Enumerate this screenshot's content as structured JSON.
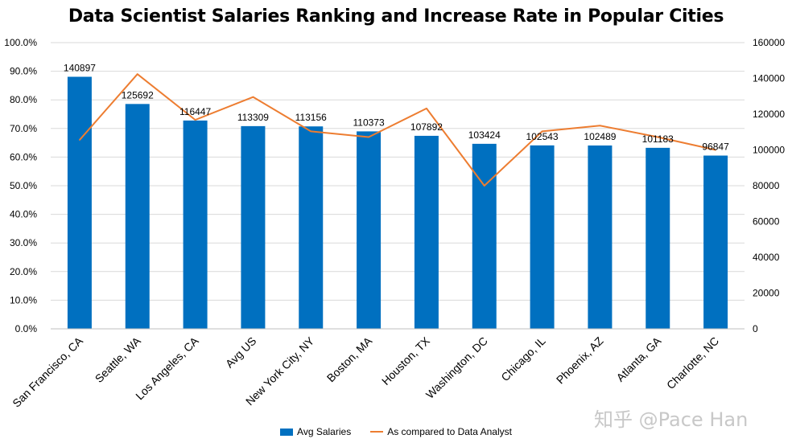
{
  "title": "Data Scientist Salaries Ranking and Increase Rate in Popular Cities",
  "watermark": "知乎 @Pace Han",
  "colors": {
    "bar": "#0070C0",
    "line": "#ED7D31",
    "grid": "#D9D9D9"
  },
  "chart_data": {
    "type": "bar",
    "title": "Data Scientist Salaries Ranking and Increase Rate in Popular Cities",
    "categories": [
      "San Francisco, CA",
      "Seattle, WA",
      "Los Angeles, CA",
      "Avg US",
      "New York City, NY",
      "Boston, MA",
      "Houston, TX",
      "Washington, DC",
      "Chicago, IL",
      "Phoenix, AZ",
      "Atlanta, GA",
      "Charlotte, NC"
    ],
    "series": [
      {
        "name": "Avg Salaries",
        "type": "bar",
        "axis": "right",
        "values": [
          140897,
          125692,
          116447,
          113309,
          113156,
          110373,
          107892,
          103424,
          102543,
          102489,
          101183,
          96847
        ]
      },
      {
        "name": "As compared to Data Analyst",
        "type": "line",
        "axis": "left",
        "values": [
          66.0,
          89.0,
          73.0,
          81.0,
          69.0,
          67.0,
          77.0,
          50.0,
          69.0,
          71.0,
          67.0,
          62.5
        ]
      }
    ],
    "y_left": {
      "ylim": [
        0,
        100
      ],
      "ticks": [
        "0.0%",
        "10.0%",
        "20.0%",
        "30.0%",
        "40.0%",
        "50.0%",
        "60.0%",
        "70.0%",
        "80.0%",
        "90.0%",
        "100.0%"
      ]
    },
    "y_right": {
      "ylim": [
        0,
        160000
      ],
      "ticks": [
        "0",
        "20000",
        "40000",
        "60000",
        "80000",
        "100000",
        "120000",
        "140000",
        "160000"
      ]
    },
    "grid": true,
    "legend": "bottom"
  }
}
